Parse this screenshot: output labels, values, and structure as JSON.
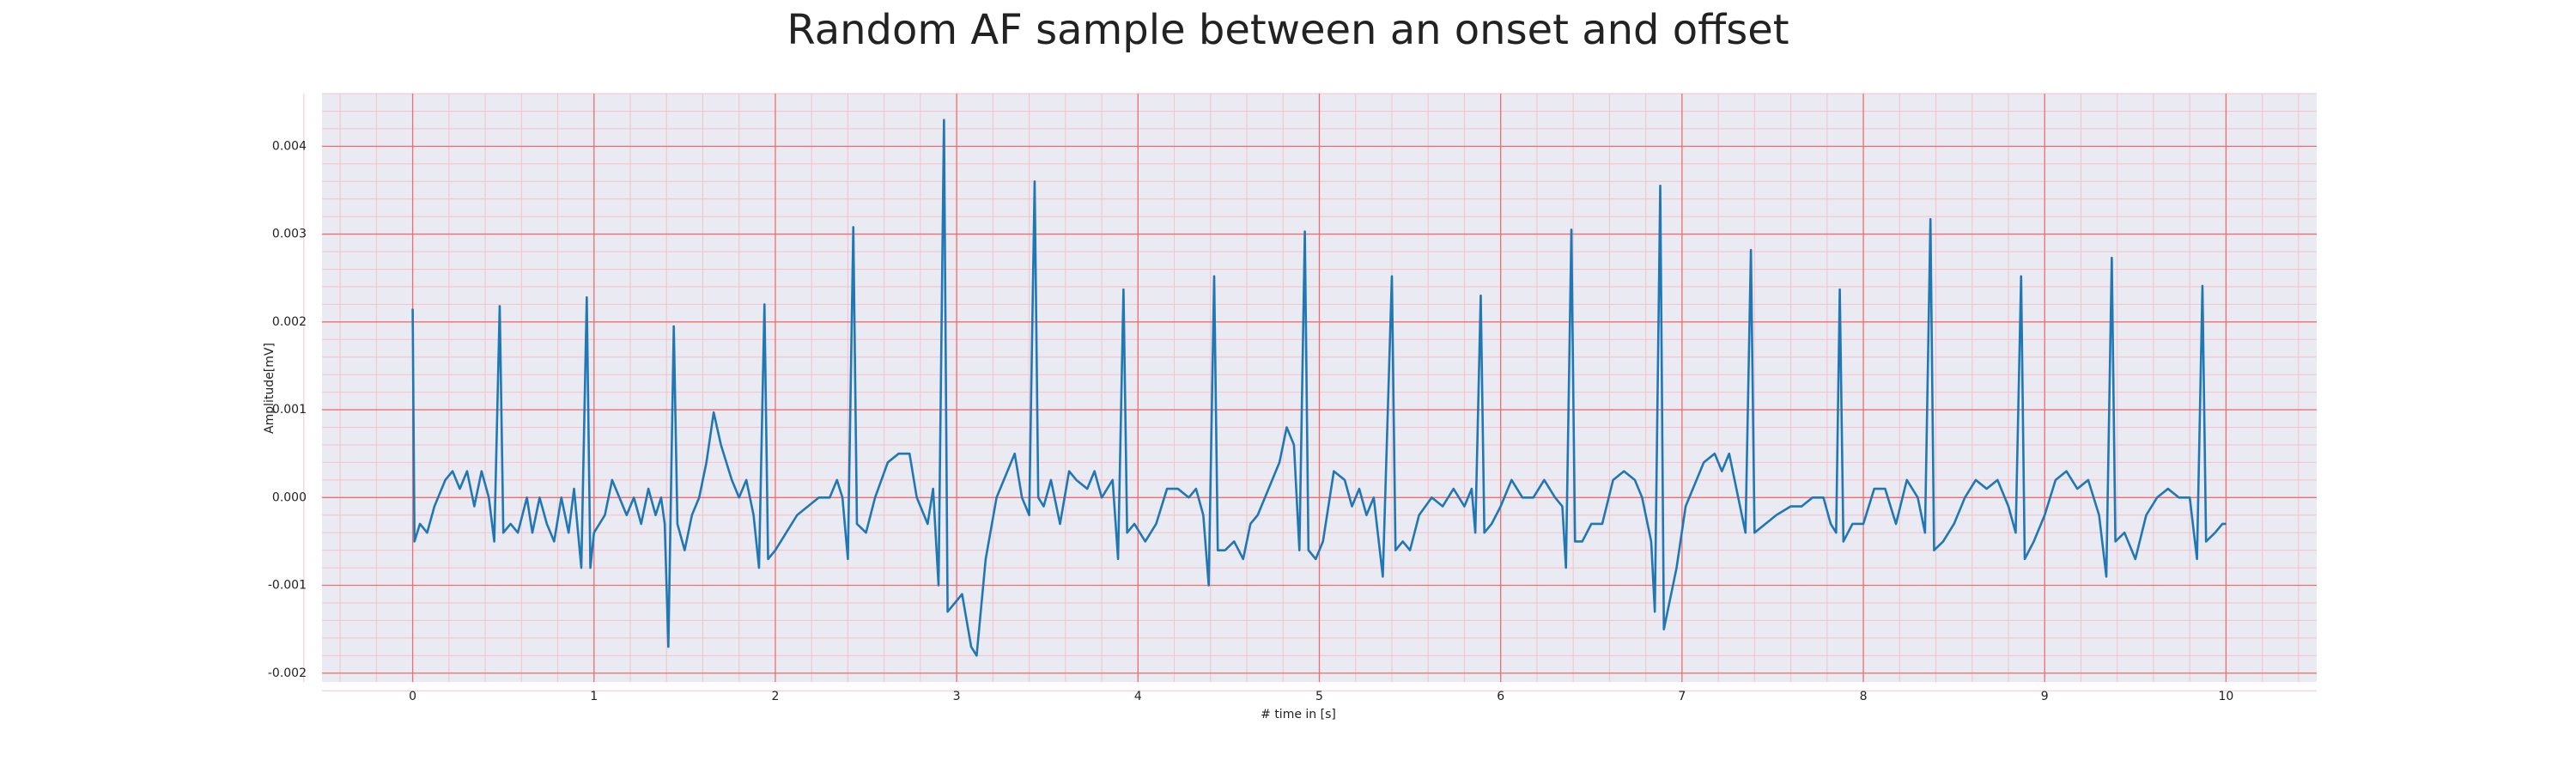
{
  "chart_data": {
    "type": "line",
    "title": "Random AF sample between an onset and offset",
    "xlabel": "# time in [s]",
    "ylabel": "Amplitude[mV]",
    "xlim": [
      -0.5,
      10.5
    ],
    "ylim": [
      -0.0021,
      0.0046
    ],
    "xticks": [
      0,
      1,
      2,
      3,
      4,
      5,
      6,
      7,
      8,
      9,
      10
    ],
    "yticks": [
      {
        "value": -0.002,
        "label": "-0.002"
      },
      {
        "value": -0.001,
        "label": "-0.001"
      },
      {
        "value": 0,
        "label": "0.000"
      },
      0.001,
      0.002,
      0.003,
      0.004
    ],
    "grid": true,
    "minor_grid": true,
    "background": "#eaeaf2",
    "grid_color": "#ee6f6f",
    "minor_grid_color": "#f3c2cc",
    "x": [
      0,
      0.01,
      0.04,
      0.08,
      0.12,
      0.18,
      0.22,
      0.26,
      0.3,
      0.34,
      0.38,
      0.42,
      0.45,
      0.48,
      0.5,
      0.54,
      0.58,
      0.63,
      0.66,
      0.7,
      0.74,
      0.78,
      0.82,
      0.86,
      0.89,
      0.93,
      0.96,
      0.98,
      1.0,
      1.06,
      1.1,
      1.14,
      1.18,
      1.22,
      1.26,
      1.3,
      1.34,
      1.37,
      1.39,
      1.41,
      1.44,
      1.46,
      1.5,
      1.54,
      1.58,
      1.62,
      1.66,
      1.7,
      1.76,
      1.8,
      1.84,
      1.88,
      1.91,
      1.94,
      1.96,
      2.0,
      2.06,
      2.12,
      2.18,
      2.24,
      2.3,
      2.34,
      2.37,
      2.4,
      2.43,
      2.45,
      2.5,
      2.55,
      2.62,
      2.68,
      2.74,
      2.78,
      2.84,
      2.87,
      2.9,
      2.93,
      2.95,
      2.99,
      3.03,
      3.08,
      3.11,
      3.16,
      3.22,
      3.28,
      3.32,
      3.36,
      3.4,
      3.43,
      3.45,
      3.48,
      3.52,
      3.57,
      3.62,
      3.66,
      3.72,
      3.76,
      3.8,
      3.86,
      3.89,
      3.92,
      3.94,
      3.98,
      4.04,
      4.1,
      4.16,
      4.22,
      4.28,
      4.32,
      4.36,
      4.39,
      4.42,
      4.44,
      4.48,
      4.53,
      4.58,
      4.62,
      4.66,
      4.72,
      4.78,
      4.82,
      4.86,
      4.89,
      4.92,
      4.94,
      4.98,
      5.02,
      5.08,
      5.14,
      5.18,
      5.22,
      5.26,
      5.3,
      5.35,
      5.4,
      5.42,
      5.46,
      5.5,
      5.55,
      5.62,
      5.68,
      5.74,
      5.8,
      5.84,
      5.86,
      5.89,
      5.91,
      5.95,
      6.0,
      6.06,
      6.12,
      6.18,
      6.24,
      6.3,
      6.34,
      6.36,
      6.39,
      6.41,
      6.45,
      6.5,
      6.56,
      6.62,
      6.68,
      6.74,
      6.78,
      6.83,
      6.85,
      6.88,
      6.9,
      6.93,
      6.97,
      7.02,
      7.08,
      7.12,
      7.18,
      7.22,
      7.26,
      7.3,
      7.35,
      7.38,
      7.4,
      7.46,
      7.52,
      7.6,
      7.66,
      7.72,
      7.78,
      7.82,
      7.85,
      7.87,
      7.89,
      7.94,
      8.0,
      8.06,
      8.12,
      8.18,
      8.24,
      8.3,
      8.34,
      8.37,
      8.39,
      8.44,
      8.5,
      8.56,
      8.62,
      8.68,
      8.74,
      8.8,
      8.84,
      8.87,
      8.89,
      8.94,
      9.0,
      9.06,
      9.12,
      9.18,
      9.24,
      9.3,
      9.34,
      9.37,
      9.39,
      9.44,
      9.5,
      9.56,
      9.62,
      9.68,
      9.74,
      9.8,
      9.84,
      9.87,
      9.89,
      9.94,
      9.98,
      10.0
    ],
    "series": [
      {
        "color": "#1f77b4",
        "values": [
          0.00215,
          -0.0005,
          -0.0003,
          -0.0004,
          -0.0001,
          0.0002,
          0.0003,
          0.0001,
          0.0003,
          -0.0001,
          0.0003,
          0.0,
          -0.0005,
          0.00218,
          -0.0004,
          -0.0003,
          -0.0004,
          0.0,
          -0.0004,
          0.0,
          -0.0003,
          -0.0005,
          0.0,
          -0.0004,
          0.0001,
          -0.0008,
          0.00228,
          -0.0008,
          -0.0004,
          -0.0002,
          0.0002,
          0.0,
          -0.0002,
          0.0,
          -0.0003,
          0.0001,
          -0.0002,
          0.0,
          -0.0003,
          -0.0017,
          0.00195,
          -0.0003,
          -0.0006,
          -0.0002,
          0.0,
          0.0004,
          0.00097,
          0.0006,
          0.0002,
          0.0,
          0.0002,
          -0.0002,
          -0.0008,
          0.0022,
          -0.0007,
          -0.0006,
          -0.0004,
          -0.0002,
          -0.0001,
          0.0,
          0.0,
          0.0002,
          0.0,
          -0.0007,
          0.00308,
          -0.0003,
          -0.0004,
          0.0,
          0.0004,
          0.0005,
          0.0005,
          0.0,
          -0.0003,
          0.0001,
          -0.001,
          0.0043,
          -0.0013,
          -0.0012,
          -0.0011,
          -0.0017,
          -0.0018,
          -0.0007,
          0.0,
          0.0003,
          0.0005,
          0.0,
          -0.0002,
          0.0036,
          0.0,
          -0.0001,
          0.0002,
          -0.0003,
          0.0003,
          0.0002,
          0.0001,
          0.0003,
          0.0,
          0.0002,
          -0.0007,
          0.00237,
          -0.0004,
          -0.0003,
          -0.0005,
          -0.0003,
          0.0001,
          0.0001,
          0.0,
          0.0001,
          -0.0002,
          -0.001,
          0.00252,
          -0.0006,
          -0.0006,
          -0.0005,
          -0.0007,
          -0.0003,
          -0.0002,
          0.0001,
          0.0004,
          0.0008,
          0.0006,
          -0.0006,
          0.00303,
          -0.0006,
          -0.0007,
          -0.0005,
          0.0003,
          0.0002,
          -0.0001,
          0.0001,
          -0.0002,
          0.0,
          -0.0009,
          0.00252,
          -0.0006,
          -0.0005,
          -0.0006,
          -0.0002,
          0.0,
          -0.0001,
          0.0001,
          -0.0001,
          0.0001,
          -0.0004,
          0.0023,
          -0.0004,
          -0.0003,
          -0.0001,
          0.0002,
          0.0,
          0.0,
          0.0002,
          0.0,
          -0.0001,
          -0.0008,
          0.00305,
          -0.0005,
          -0.0005,
          -0.0003,
          -0.0003,
          0.0002,
          0.0003,
          0.0002,
          0.0,
          -0.0005,
          -0.0013,
          0.00355,
          -0.0015,
          -0.0012,
          -0.0008,
          -0.0001,
          0.0002,
          0.0004,
          0.0005,
          0.0003,
          0.0005,
          0.0001,
          -0.0004,
          0.00282,
          -0.0004,
          -0.0003,
          -0.0002,
          -0.0001,
          -0.0001,
          0.0,
          0.0,
          -0.0003,
          -0.0004,
          0.00237,
          -0.0005,
          -0.0003,
          -0.0003,
          0.0001,
          0.0001,
          -0.0003,
          0.0002,
          0.0,
          -0.0004,
          0.00317,
          -0.0006,
          -0.0005,
          -0.0003,
          0.0,
          0.0002,
          0.0001,
          0.0002,
          -0.0001,
          -0.0004,
          0.00252,
          -0.0007,
          -0.0005,
          -0.0002,
          0.0002,
          0.0003,
          0.0001,
          0.0002,
          -0.0002,
          -0.0009,
          0.00273,
          -0.0005,
          -0.0004,
          -0.0007,
          -0.0002,
          0.0,
          0.0001,
          0.0,
          0.0,
          -0.0007,
          0.00241,
          -0.0005,
          -0.0004,
          -0.0003,
          -0.0003
        ]
      }
    ]
  }
}
